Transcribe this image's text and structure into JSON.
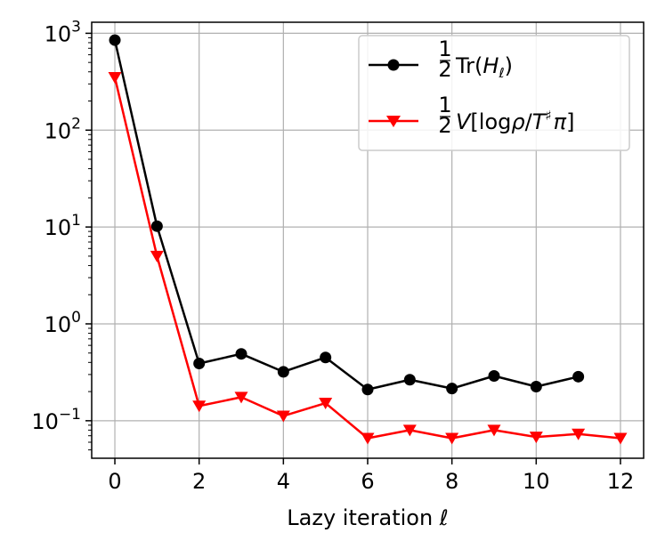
{
  "chart_data": {
    "type": "line",
    "title": "",
    "xlabel": "Lazy iteration ℓ",
    "ylabel": "",
    "yscale": "log",
    "xlim": [
      -0.55,
      12.55
    ],
    "ylim": [
      0.041,
      1300
    ],
    "grid": true,
    "legend_position": "top-right",
    "x_ticks": [
      0,
      2,
      4,
      6,
      8,
      10,
      12
    ],
    "y_ticks": [
      {
        "value": 1000,
        "base": "10",
        "exp": "3"
      },
      {
        "value": 100,
        "base": "10",
        "exp": "2"
      },
      {
        "value": 10,
        "base": "10",
        "exp": "1"
      },
      {
        "value": 1,
        "base": "10",
        "exp": "0"
      },
      {
        "value": 0.1,
        "base": "10",
        "exp": "−1"
      }
    ],
    "series": [
      {
        "name": "½Tr(H_ℓ)",
        "legend_label": {
          "frac_num": "1",
          "frac_den": "2",
          "text": "Tr(",
          "italic": "H",
          "sub": "ℓ",
          "tail": ")"
        },
        "color": "#000000",
        "marker": "circle",
        "x": [
          0,
          1,
          2,
          3,
          4,
          5,
          6,
          7,
          8,
          9,
          10,
          11
        ],
        "values": [
          850,
          10.2,
          0.39,
          0.49,
          0.32,
          0.45,
          0.21,
          0.265,
          0.215,
          0.29,
          0.225,
          0.285
        ]
      },
      {
        "name": "½V[logρ/T♯π]",
        "legend_label": {
          "frac_num": "1",
          "frac_den": "2",
          "italic_v": "V",
          "open": "[log",
          "rho": "ρ",
          "slash": "/",
          "T": "T",
          "sharp": "♯",
          "pi": "π",
          "close": "]"
        },
        "color": "#ff0000",
        "marker": "triangle-down",
        "x": [
          0,
          1,
          2,
          3,
          4,
          5,
          6,
          7,
          8,
          9,
          10,
          11,
          12
        ],
        "values": [
          350,
          5.0,
          0.142,
          0.175,
          0.112,
          0.152,
          0.066,
          0.08,
          0.066,
          0.08,
          0.068,
          0.073,
          0.066
        ]
      }
    ]
  }
}
